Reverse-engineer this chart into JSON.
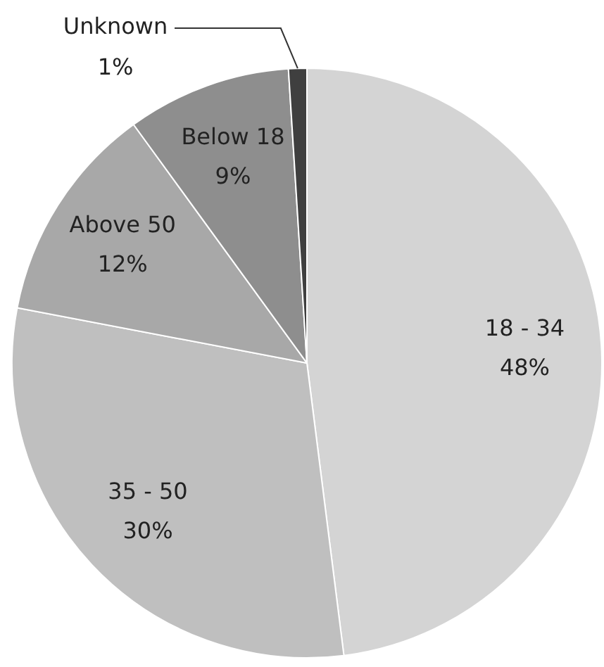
{
  "chart_data": {
    "type": "pie",
    "categories": [
      "18 - 34",
      "35 - 50",
      "Above 50",
      "Below 18",
      "Unknown"
    ],
    "values": [
      48,
      30,
      12,
      9,
      1
    ],
    "value_labels": [
      "48%",
      "30%",
      "12%",
      "9%",
      "1%"
    ],
    "colors": [
      "#d4d4d4",
      "#bfbfbf",
      "#a8a8a8",
      "#8e8e8e",
      "#3f3f3f"
    ],
    "legend": false
  }
}
